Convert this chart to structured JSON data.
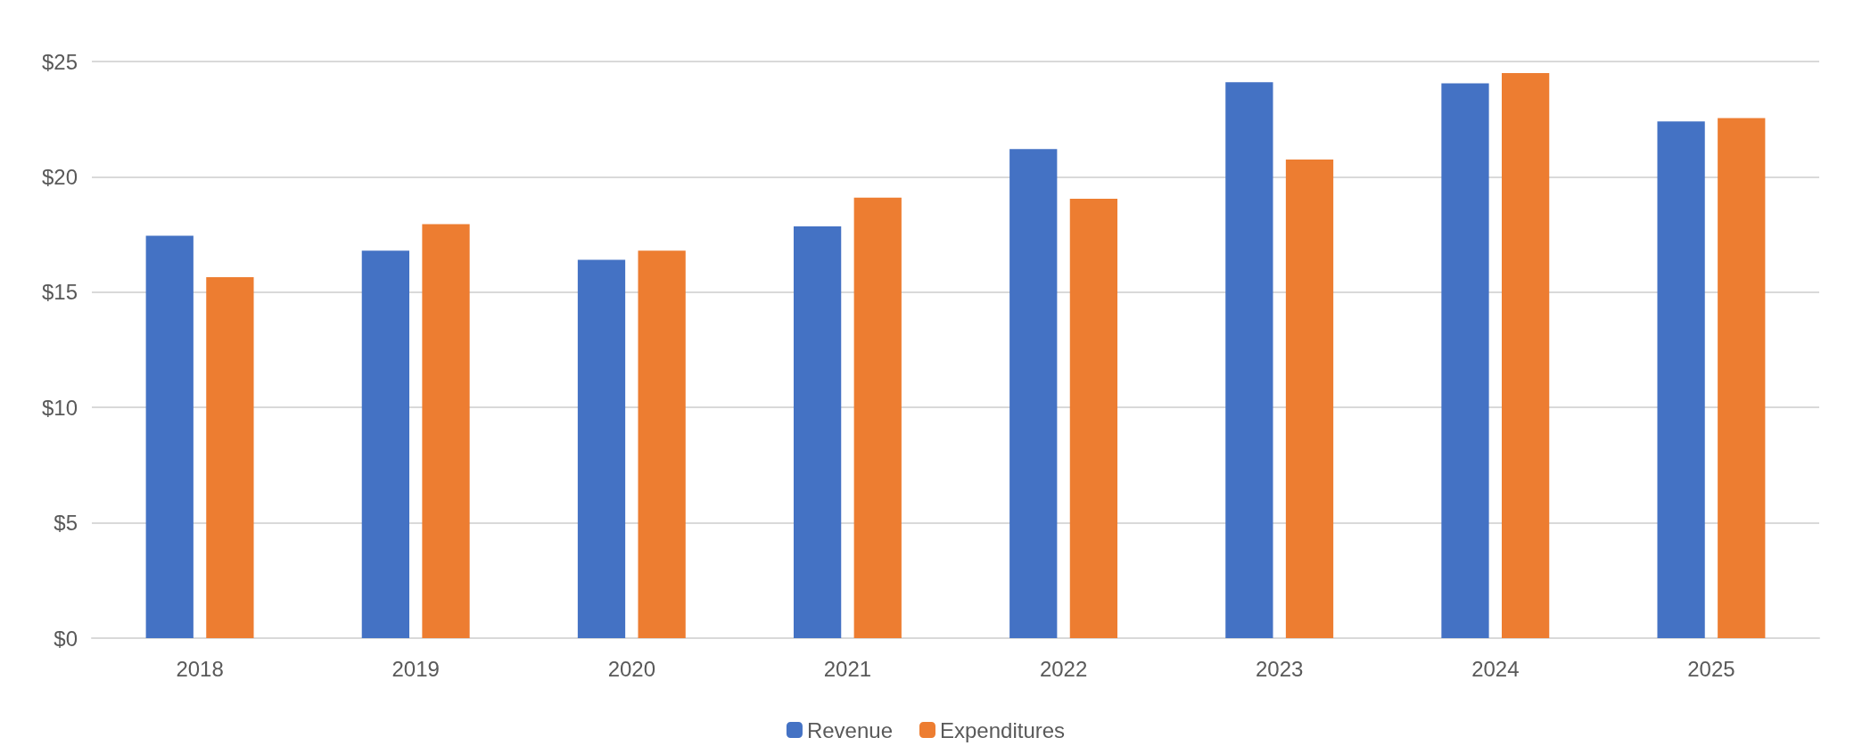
{
  "chart_data": {
    "type": "bar",
    "categories": [
      "2018",
      "2019",
      "2020",
      "2021",
      "2022",
      "2023",
      "2024",
      "2025"
    ],
    "series": [
      {
        "name": "Revenue",
        "color": "#4472c4",
        "values": [
          17.45,
          16.8,
          16.4,
          17.85,
          21.2,
          24.1,
          24.05,
          22.4
        ]
      },
      {
        "name": "Expenditures",
        "color": "#ed7d31",
        "values": [
          15.65,
          17.95,
          16.8,
          19.1,
          19.05,
          20.75,
          24.5,
          22.55
        ]
      }
    ],
    "ylim": [
      0,
      25
    ],
    "yticks": [
      {
        "value": 0,
        "label": "$0"
      },
      {
        "value": 5,
        "label": "$5"
      },
      {
        "value": 10,
        "label": "$10"
      },
      {
        "value": 15,
        "label": "$15"
      },
      {
        "value": 20,
        "label": "$20"
      },
      {
        "value": 25,
        "label": "$25"
      }
    ],
    "grid": "y",
    "legend": "bottom"
  }
}
